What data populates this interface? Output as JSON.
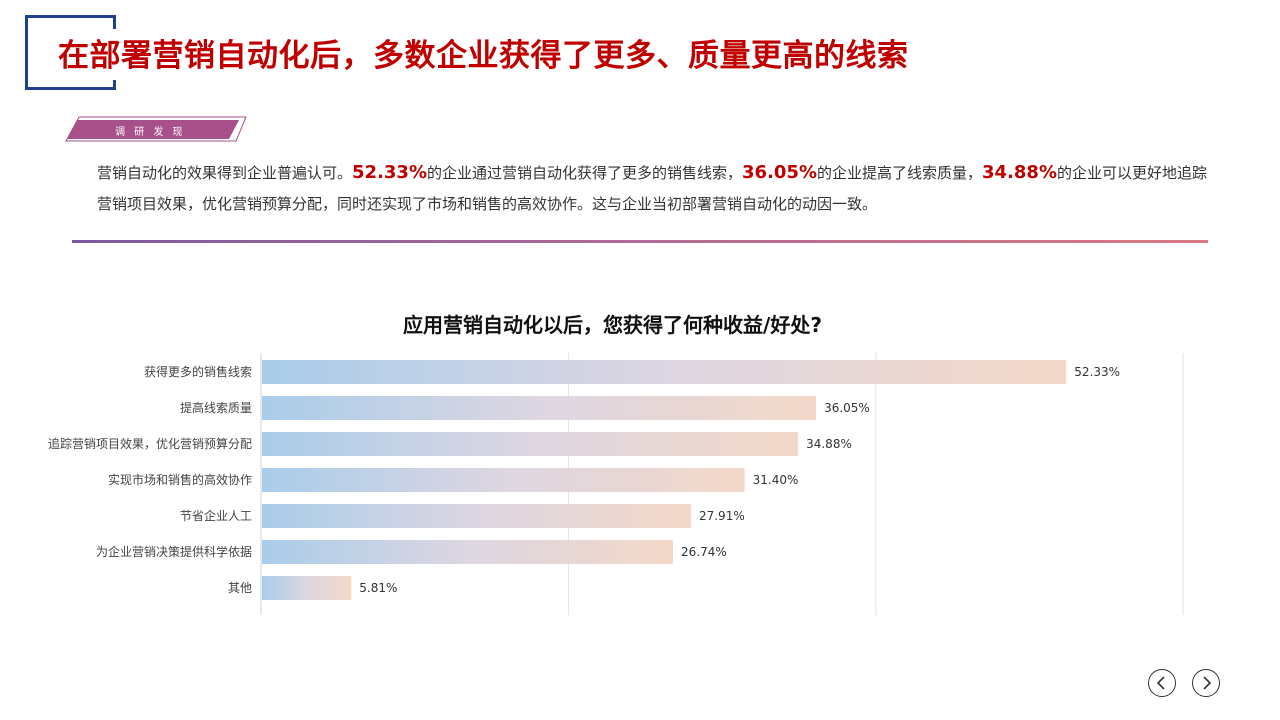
{
  "page": {
    "title": "在部署营销自动化后，多数企业获得了更多、质量更高的线索",
    "tag_label": "调 研 发 现",
    "summary": {
      "p1": "营销自动化的效果得到企业普遍认可。",
      "h1": "52.33%",
      "p2": "的企业通过营销自动化获得了更多的销售线索，",
      "h2": "36.05%",
      "p3": "的企业提高了线索质量，",
      "h3": "34.88%",
      "p4": "的企业可以更好地追踪营销项目效果，优化营销预算分配，同时还实现了市场和销售的高效协作。这与企业当初部署营销自动化的动因一致。"
    }
  },
  "colors": {
    "title": "#c00000",
    "frame": "#1f3f8f",
    "tag": "#a8508a",
    "bar_start": "#a9cdea",
    "bar_end": "#f3d8c8"
  },
  "chart_data": {
    "type": "bar",
    "orientation": "horizontal",
    "title": "应用营销自动化以后，您获得了何种收益/好处?",
    "categories": [
      "获得更多的销售线索",
      "提高线索质量",
      "追踪营销项目效果，优化营销预算分配",
      "实现市场和销售的高效协作",
      "节省企业人工",
      "为企业营销决策提供科学依据",
      "其他"
    ],
    "values": [
      52.33,
      36.05,
      34.88,
      31.4,
      27.91,
      26.74,
      5.81
    ],
    "data_labels": [
      "52.33%",
      "36.05%",
      "34.88%",
      "31.40%",
      "27.91%",
      "26.74%",
      "5.81%"
    ],
    "xlim": [
      0,
      60
    ],
    "grid": true
  },
  "nav": {
    "prev_icon": "chevron-left-icon",
    "next_icon": "chevron-right-icon"
  }
}
